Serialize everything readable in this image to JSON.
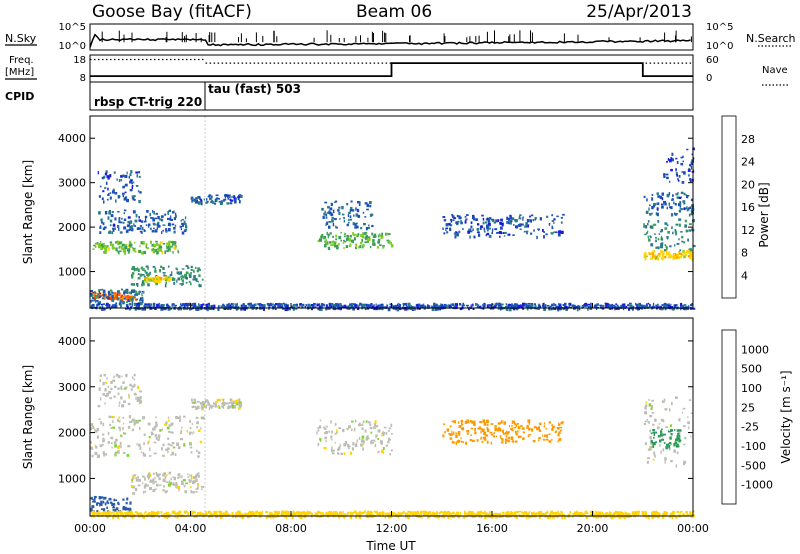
{
  "header": {
    "station": "Goose Bay (fitACF)",
    "beam": "Beam 06",
    "date": "25/Apr/2013"
  },
  "labels": {
    "nsky": "N.Sky",
    "nsearch": "N.Search",
    "freq_line1": "Freq.",
    "freq_line2": "[MHz]",
    "nave": "Nave",
    "cpid": "CPID",
    "cpid_program_1": "rbsp CT-trig 220",
    "cpid_program_2": "tau (fast) 503",
    "nsky_tick_top": "10^5",
    "nsky_tick_bottom": "10^0",
    "nsearch_tick_top": "10^5",
    "nsearch_tick_bottom": "10^0",
    "freq_tick_top": "18",
    "freq_tick_bottom": "8",
    "nave_tick_top": "60",
    "nave_tick_bottom": "0"
  },
  "colors": {
    "power_scale": [
      "#1a1ad8",
      "#1a4fb8",
      "#2a7a8a",
      "#3a9e5a",
      "#7acc22",
      "#ffd400",
      "#ff9900",
      "#ff5a00",
      "#e60000"
    ],
    "velocity_scale": [
      "#e60000",
      "#ff6a00",
      "#ff9900",
      "#ffd400",
      "#bdbdb5",
      "#bdbdb5",
      "#7ad62a",
      "#2a9a5a",
      "#2a5aaa",
      "#1a1ad8"
    ],
    "ground_scatter": "#bdbdb5"
  },
  "chart_data": [
    {
      "type": "heatmap",
      "name": "power",
      "title": "",
      "xlabel": "",
      "ylabel": "Slant Range [km]",
      "xlim_hours": [
        0,
        24
      ],
      "ylim": [
        180,
        4500
      ],
      "x_ticks": [
        "00:00",
        "04:00",
        "08:00",
        "12:00",
        "16:00",
        "20:00",
        "00:00"
      ],
      "y_ticks": [
        "1000",
        "2000",
        "3000",
        "4000"
      ],
      "y_tick_values": [
        1000,
        2000,
        3000,
        4000
      ],
      "colorbar": {
        "label": "Power [dB]",
        "ticks": [
          "4",
          "8",
          "12",
          "16",
          "20",
          "24",
          "28"
        ],
        "range": [
          0,
          30
        ]
      },
      "patches": [
        {
          "t": [
            0.0,
            1.2
          ],
          "r": [
            420,
            540
          ],
          "value": 25
        },
        {
          "t": [
            0.8,
            1.8
          ],
          "r": [
            380,
            480
          ],
          "value": 24
        },
        {
          "t": [
            0.0,
            2.2
          ],
          "r": [
            300,
            620
          ],
          "value": 8
        },
        {
          "t": [
            1.6,
            4.5
          ],
          "r": [
            700,
            1150
          ],
          "value": 10
        },
        {
          "t": [
            2.0,
            3.2
          ],
          "r": [
            800,
            900
          ],
          "value": 18
        },
        {
          "t": [
            0.0,
            3.5
          ],
          "r": [
            1450,
            1700
          ],
          "value": 14
        },
        {
          "t": [
            0.3,
            3.8
          ],
          "r": [
            1900,
            2400
          ],
          "value": 6
        },
        {
          "t": [
            0.3,
            2.0
          ],
          "r": [
            2600,
            3300
          ],
          "value": 5
        },
        {
          "t": [
            4.0,
            6.0
          ],
          "r": [
            2550,
            2750
          ],
          "value": 6
        },
        {
          "t": [
            9.0,
            12.0
          ],
          "r": [
            1550,
            1900
          ],
          "value": 13
        },
        {
          "t": [
            9.2,
            11.2
          ],
          "r": [
            2000,
            2600
          ],
          "value": 7
        },
        {
          "t": [
            14.0,
            18.8
          ],
          "r": [
            1800,
            2300
          ],
          "value": 5
        },
        {
          "t": [
            22.0,
            24.0
          ],
          "r": [
            1300,
            1500
          ],
          "value": 19
        },
        {
          "t": [
            22.0,
            24.0
          ],
          "r": [
            1500,
            2200
          ],
          "value": 10
        },
        {
          "t": [
            22.0,
            24.0
          ],
          "r": [
            2300,
            2800
          ],
          "value": 6
        },
        {
          "t": [
            22.8,
            24.0
          ],
          "r": [
            3000,
            3800
          ],
          "value": 4
        },
        {
          "t": [
            0.0,
            24.0
          ],
          "r": [
            180,
            300
          ],
          "value": 5
        }
      ]
    },
    {
      "type": "heatmap",
      "name": "velocity",
      "title": "",
      "xlabel": "Time UT",
      "ylabel": "Slant Range [km]",
      "xlim_hours": [
        0,
        24
      ],
      "ylim": [
        180,
        4500
      ],
      "x_ticks": [
        "00:00",
        "04:00",
        "08:00",
        "12:00",
        "16:00",
        "20:00",
        "00:00"
      ],
      "y_ticks": [
        "1000",
        "2000",
        "3000",
        "4000"
      ],
      "y_tick_values": [
        1000,
        2000,
        3000,
        4000
      ],
      "colorbar": {
        "label": "Velocity [m s⁻¹]",
        "ticks": [
          "-1000",
          "-500",
          "-100",
          "-25",
          "25",
          "100",
          "500",
          "1000"
        ]
      },
      "patches": [
        {
          "t": [
            0.0,
            4.5
          ],
          "r": [
            1500,
            2400
          ],
          "value": 0
        },
        {
          "t": [
            1.6,
            4.5
          ],
          "r": [
            700,
            1150
          ],
          "value": 0
        },
        {
          "t": [
            4.0,
            6.0
          ],
          "r": [
            2550,
            2750
          ],
          "value": 0
        },
        {
          "t": [
            0.3,
            2.0
          ],
          "r": [
            2600,
            3300
          ],
          "value": 0
        },
        {
          "t": [
            9.0,
            12.0
          ],
          "r": [
            1550,
            2300
          ],
          "value": 0
        },
        {
          "t": [
            0.0,
            1.6
          ],
          "r": [
            300,
            620
          ],
          "value": 600
        },
        {
          "t": [
            14.0,
            18.8
          ],
          "r": [
            1800,
            2300
          ],
          "value": -150
        },
        {
          "t": [
            22.0,
            24.0
          ],
          "r": [
            1300,
            2800
          ],
          "value": 0
        },
        {
          "t": [
            22.3,
            23.5
          ],
          "r": [
            1700,
            2100
          ],
          "value": 150
        },
        {
          "t": [
            0.0,
            24.0
          ],
          "r": [
            180,
            300
          ],
          "value": -60
        }
      ]
    },
    {
      "type": "line",
      "name": "nsky",
      "series": [
        {
          "x": [
            0.0,
            0.2,
            0.4,
            4.6,
            4.7,
            12.0,
            16.0,
            20.0,
            24.0
          ],
          "y": [
            0.5,
            3.0,
            2.0,
            2.0,
            1.0,
            1.2,
            1.4,
            1.6,
            1.8
          ]
        }
      ]
    },
    {
      "type": "line",
      "name": "frequency",
      "series": [
        {
          "x": [
            0.0,
            4.6,
            4.6,
            12.0,
            12.0,
            22.0,
            22.0,
            24.0
          ],
          "y": [
            10.2,
            10.2,
            10.2,
            10.2,
            15.0,
            15.0,
            10.2,
            10.2
          ]
        }
      ]
    },
    {
      "type": "line",
      "name": "nave",
      "series": [
        {
          "x": [
            0.0,
            4.6
          ],
          "y": [
            50,
            50
          ]
        },
        {
          "x": [
            4.6,
            24.0
          ],
          "y": [
            42,
            42
          ]
        }
      ]
    }
  ]
}
